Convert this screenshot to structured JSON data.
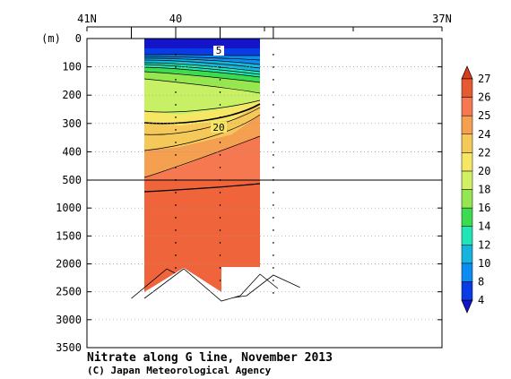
{
  "chart_data": {
    "type": "heatmap",
    "title": "Nitrate along G line, November 2013",
    "credit": "(C) Japan Meteorological Agency",
    "ylabel": "(m)",
    "x_ticks": [
      "41N",
      "40",
      "37N"
    ],
    "y_ticks_upper": [
      "0",
      "100",
      "200",
      "300",
      "400",
      "500"
    ],
    "y_ticks_lower": [
      "1000",
      "1500",
      "2000",
      "2500",
      "3000",
      "3500"
    ],
    "y_axis": {
      "upper_range_m": [
        0,
        500
      ],
      "lower_range_m": [
        500,
        3500
      ],
      "break_at_m": 500
    },
    "x_range_deg_n": [
      41,
      37
    ],
    "stations_deg_n": [
      40.5,
      40.0,
      39.5,
      38.9
    ],
    "contour_labels": [
      {
        "text": "5",
        "lat": 39.4,
        "depth_m": 40
      },
      {
        "text": "20",
        "lat": 39.4,
        "depth_m": 320
      }
    ],
    "colorbar": {
      "levels": [
        "4",
        "8",
        "10",
        "12",
        "14",
        "16",
        "18",
        "20",
        "22",
        "24",
        "25",
        "26",
        "27"
      ],
      "colors": [
        "#1414c8",
        "#0a3ce6",
        "#0a8cf0",
        "#14b4dc",
        "#1ee6b4",
        "#3cdc50",
        "#96e650",
        "#d2f064",
        "#f5e664",
        "#f5c85a",
        "#f5a050",
        "#f57850",
        "#e65a32",
        "#dc3c1e"
      ]
    },
    "bottom_depth_m": [
      {
        "lat": 40.5,
        "depth_m": 2620
      },
      {
        "lat": 40.1,
        "depth_m": 2090
      },
      {
        "lat": 39.6,
        "depth_m": 2500
      },
      {
        "lat": 39.5,
        "depth_m": 2640
      },
      {
        "lat": 39.2,
        "depth_m": 2570
      },
      {
        "lat": 38.9,
        "depth_m": 2200
      },
      {
        "lat": 38.6,
        "depth_m": 2420
      }
    ]
  }
}
